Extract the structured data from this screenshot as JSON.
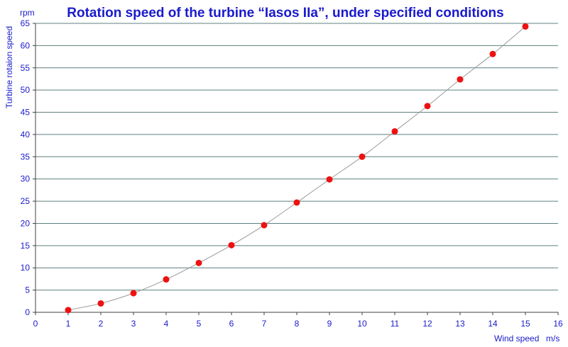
{
  "colors": {
    "text": "#1a1acc",
    "grid": "#5f7f7f",
    "axis": "#404040",
    "point": "#ee1111",
    "line": "#9a9a9a"
  },
  "chart_data": {
    "type": "scatter",
    "title": "Rotation speed of the turbine “Iasos IIa”, under specified conditions",
    "xlabel": "Wind speed",
    "xunit": "m/s",
    "ylabel": "Turbine rotaion speed",
    "yunit": "rpm",
    "xlim": [
      0,
      16
    ],
    "ylim": [
      0,
      65
    ],
    "xticks": [
      "0",
      "1",
      "2",
      "3",
      "4",
      "5",
      "6",
      "7",
      "8",
      "9",
      "10",
      "11",
      "12",
      "13",
      "14",
      "15",
      "16"
    ],
    "yticks": [
      "0",
      "5",
      "10",
      "15",
      "20",
      "25",
      "30",
      "35",
      "40",
      "45",
      "50",
      "55",
      "60",
      "65"
    ],
    "grid": "horizontal",
    "legend": "none",
    "trend_line": "smooth curve through points",
    "series": [
      {
        "x": [
          1,
          2,
          3,
          4,
          5,
          6,
          7,
          8,
          9,
          10,
          11,
          12,
          13,
          14,
          15
        ],
        "y": [
          0.5,
          2.0,
          4.3,
          7.4,
          11.1,
          15.1,
          19.6,
          24.7,
          29.9,
          35.0,
          40.7,
          46.4,
          52.4,
          58.1,
          64.3
        ]
      }
    ]
  }
}
